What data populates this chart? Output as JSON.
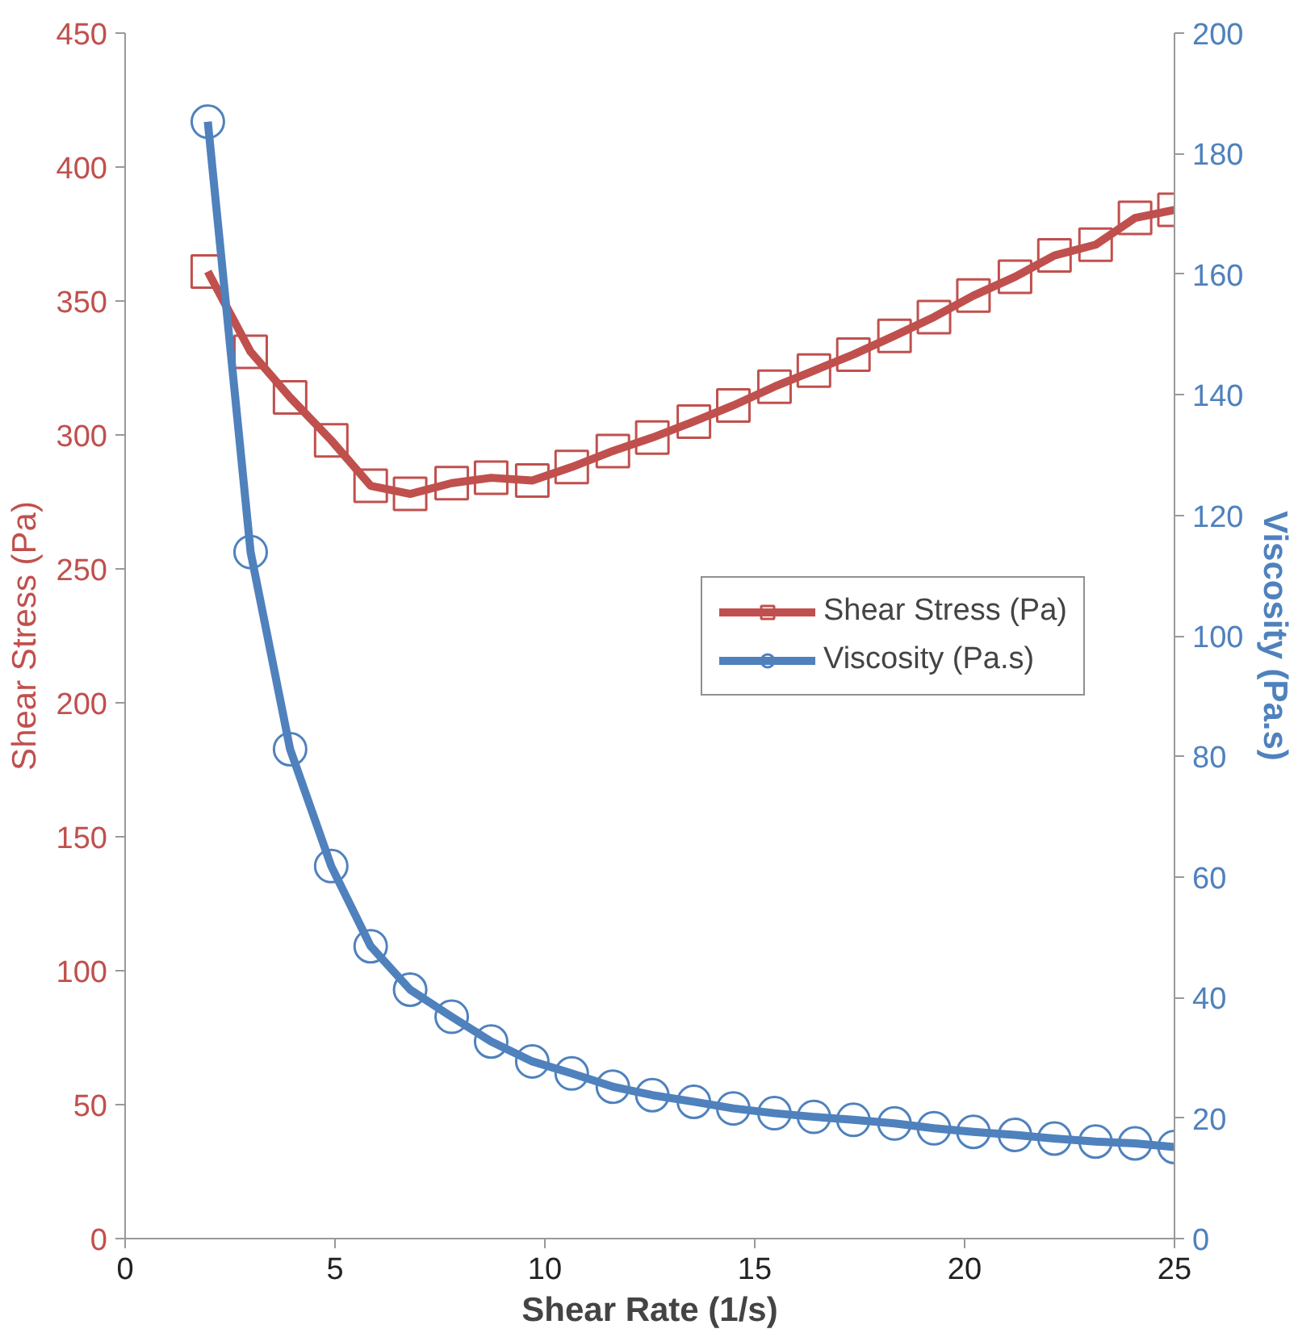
{
  "chart_data": {
    "type": "line",
    "xlabel": "Shear Rate (1/s)",
    "ylabel": "Shear Stress (Pa)",
    "y2label": "Viscosity (Pa.s)",
    "x": [
      1.97,
      2.99,
      3.93,
      4.91,
      5.85,
      6.79,
      7.78,
      8.72,
      9.7,
      10.64,
      11.62,
      12.56,
      13.55,
      14.49,
      15.47,
      16.41,
      17.35,
      18.33,
      19.27,
      20.21,
      21.2,
      22.14,
      23.12,
      24.06,
      25.0
    ],
    "series": [
      {
        "name": "Shear Stress (Pa)",
        "color": "#c0504d",
        "marker": "square",
        "values": [
          361,
          331,
          314,
          298,
          281,
          278,
          282,
          284,
          283,
          288,
          294,
          299,
          305,
          311,
          318,
          324,
          330,
          337,
          344,
          352,
          359,
          367,
          371,
          381,
          384
        ]
      },
      {
        "name": "Viscosity (Pa.s)",
        "color": "#4f81bd",
        "marker": "circle",
        "axis": "y2",
        "values": [
          185.3,
          113.9,
          81.2,
          61.8,
          48.5,
          41.3,
          36.8,
          32.7,
          29.4,
          27.4,
          25.2,
          23.8,
          22.7,
          21.6,
          20.8,
          20.2,
          19.7,
          19.1,
          18.3,
          17.7,
          17.2,
          16.6,
          16.1,
          15.8,
          15.2
        ]
      }
    ],
    "xlim": [
      0,
      25
    ],
    "xticks": [
      0,
      5,
      10,
      15,
      20,
      25
    ],
    "ylim": [
      0,
      450
    ],
    "yticks": [
      0,
      50,
      100,
      150,
      200,
      250,
      300,
      350,
      400,
      450
    ],
    "y2lim": [
      0,
      200
    ],
    "y2ticks": [
      0,
      20,
      40,
      60,
      80,
      100,
      120,
      140,
      160,
      180,
      200
    ],
    "grid": false,
    "legend": "right",
    "line_style": "solid"
  }
}
